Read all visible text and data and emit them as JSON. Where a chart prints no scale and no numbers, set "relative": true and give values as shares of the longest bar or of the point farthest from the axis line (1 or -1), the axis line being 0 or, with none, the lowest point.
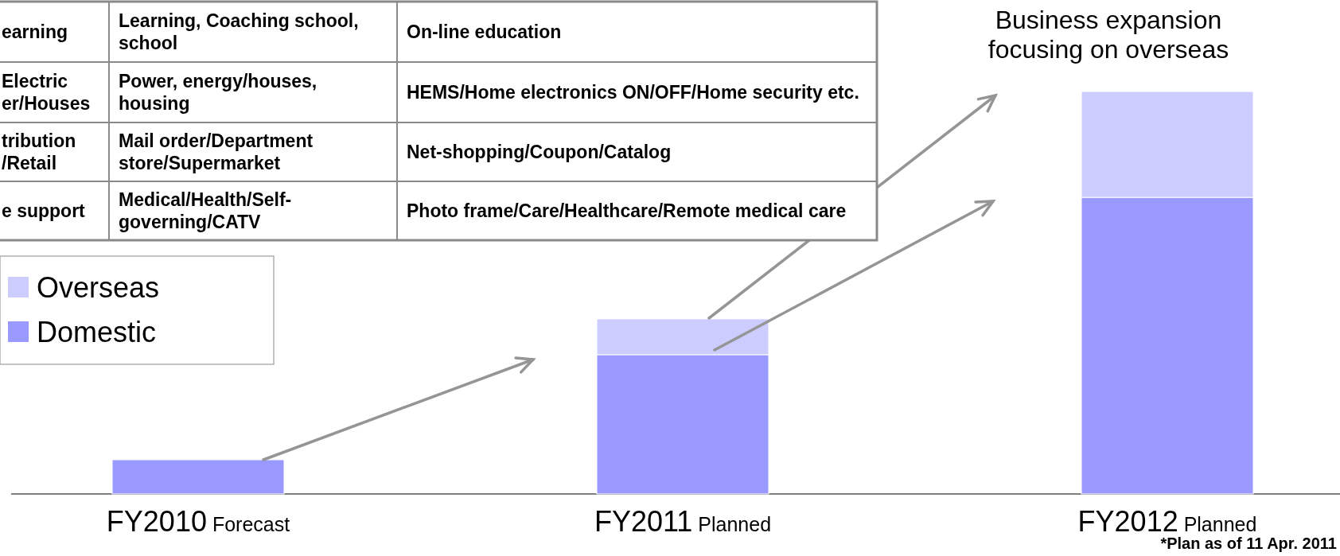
{
  "chart_data": {
    "type": "bar",
    "stacked": true,
    "relative": true,
    "categories": [
      "FY2010 Forecast",
      "FY2011 Planned",
      "FY2012 Planned"
    ],
    "series": [
      {
        "name": "Domestic",
        "color": "#9999ff",
        "values": [
          0.085,
          0.346,
          0.737
        ]
      },
      {
        "name": "Overseas",
        "color": "#ccccff",
        "values": [
          null,
          0.089,
          0.263
        ]
      }
    ],
    "legend": "left",
    "annotations": [
      "earning",
      "Learning, Coaching school, school",
      "On-line education",
      "Electric er/Houses",
      "Power, energy/houses, housing",
      "HEMS/Home electronics ON/OFF/Home security etc.",
      "tribution /Retail",
      "Mail order/Department store/Supermarket",
      "Net-shopping/Coupon/Catalog",
      "e support",
      "Medical/Health/Self-governing/CATV",
      "Photo frame/Care/Healthcare/Remote medical care",
      "Business expansion focusing on overseas",
      "*Plan as of 11 Apr. 2011"
    ]
  }
}
